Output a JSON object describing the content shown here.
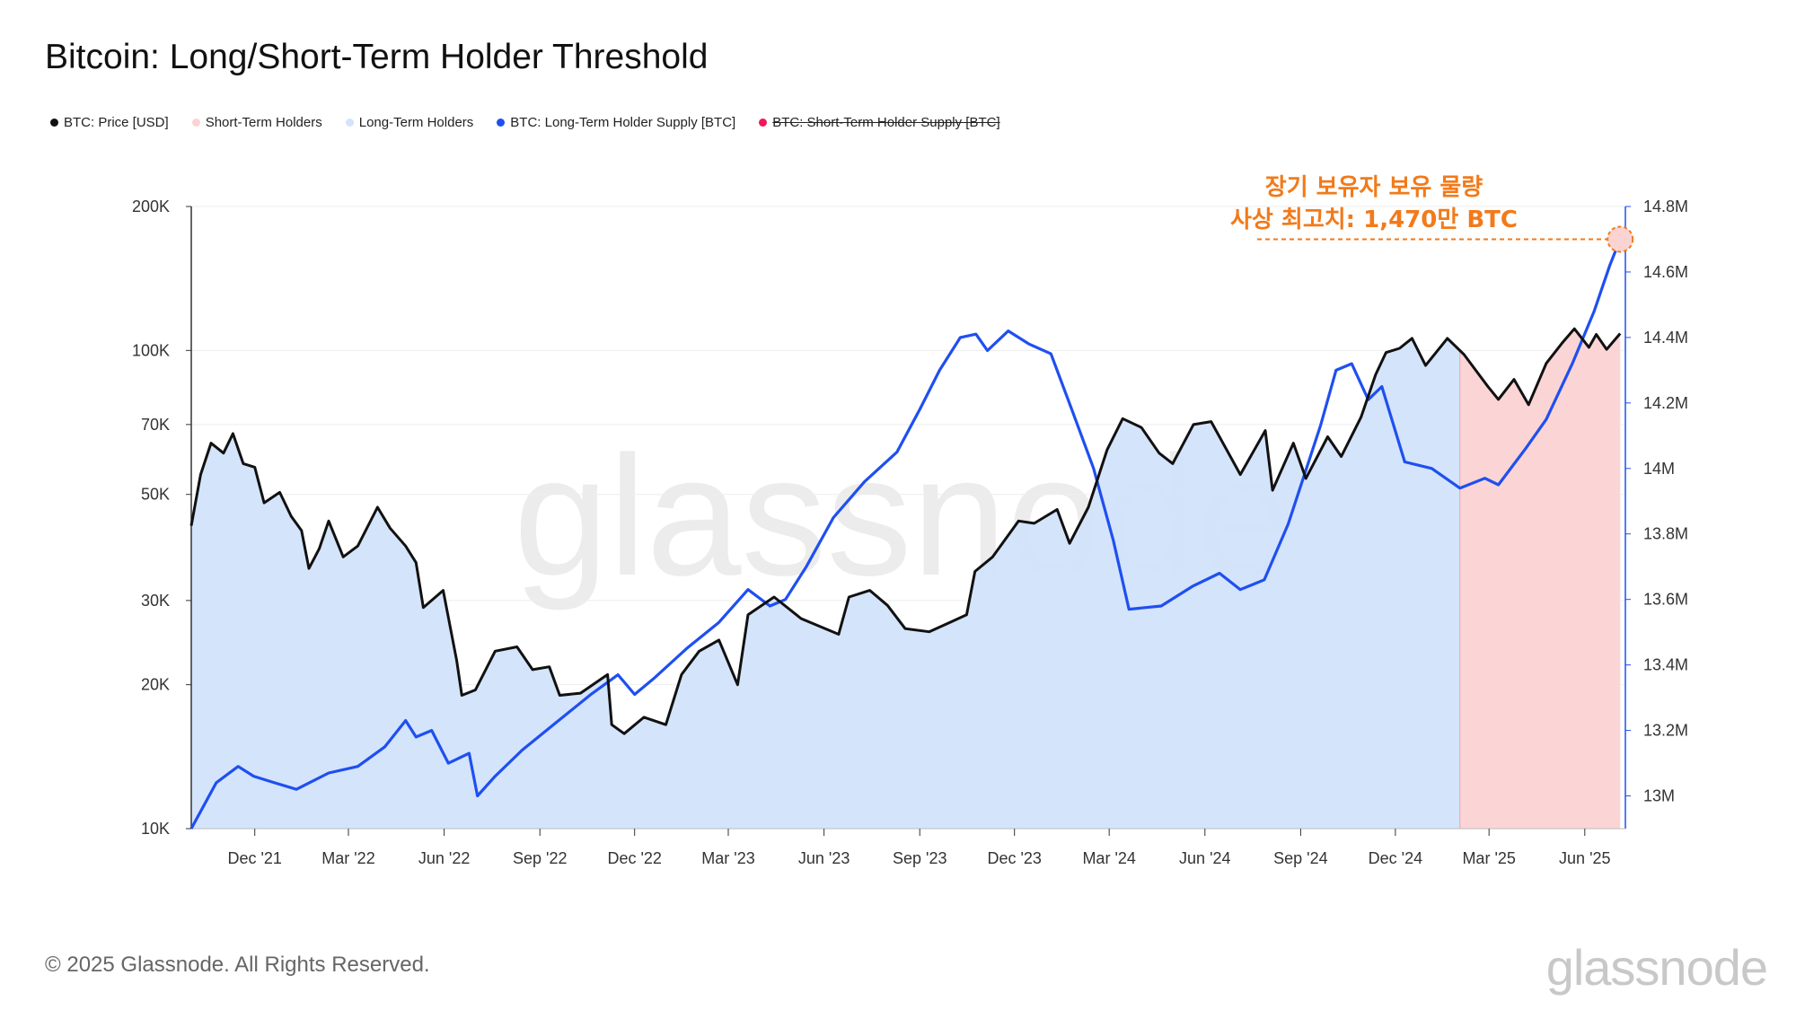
{
  "page": {
    "title": "Bitcoin: Long/Short-Term Holder Threshold",
    "footer": "© 2025 Glassnode. All Rights Reserved.",
    "logo": "glassnode",
    "watermark": "glassnode"
  },
  "legend": [
    {
      "label": "BTC: Price [USD]",
      "color": "#111111",
      "struck": false
    },
    {
      "label": "Short-Term Holders",
      "color": "#fbd3d3",
      "struck": false
    },
    {
      "label": "Long-Term Holders",
      "color": "#d2e3fb",
      "struck": false
    },
    {
      "label": "BTC: Long-Term Holder Supply [BTC]",
      "color": "#1f4ff0",
      "struck": false
    },
    {
      "label": "BTC: Short-Term Holder Supply [BTC]",
      "color": "#f0185a",
      "struck": true
    }
  ],
  "chart_data": {
    "type": "line",
    "title": "Bitcoin: Long/Short-Term Holder Threshold",
    "x_range": [
      "2021-10-01",
      "2025-07-10"
    ],
    "x_ticks": [
      {
        "date": "2021-12-01",
        "label": "Dec '21"
      },
      {
        "date": "2022-03-01",
        "label": "Mar '22"
      },
      {
        "date": "2022-06-01",
        "label": "Jun '22"
      },
      {
        "date": "2022-09-01",
        "label": "Sep '22"
      },
      {
        "date": "2022-12-01",
        "label": "Dec '22"
      },
      {
        "date": "2023-03-01",
        "label": "Mar '23"
      },
      {
        "date": "2023-06-01",
        "label": "Jun '23"
      },
      {
        "date": "2023-09-01",
        "label": "Sep '23"
      },
      {
        "date": "2023-12-01",
        "label": "Dec '23"
      },
      {
        "date": "2024-03-01",
        "label": "Mar '24"
      },
      {
        "date": "2024-06-01",
        "label": "Jun '24"
      },
      {
        "date": "2024-09-01",
        "label": "Sep '24"
      },
      {
        "date": "2024-12-01",
        "label": "Dec '24"
      },
      {
        "date": "2025-03-01",
        "label": "Mar '25"
      },
      {
        "date": "2025-06-01",
        "label": "Jun '25"
      }
    ],
    "y_left": {
      "scale": "log",
      "range": [
        10000,
        200000
      ],
      "ticks": [
        {
          "value": 10000,
          "label": "10K"
        },
        {
          "value": 20000,
          "label": "20K"
        },
        {
          "value": 30000,
          "label": "30K"
        },
        {
          "value": 50000,
          "label": "50K"
        },
        {
          "value": 70000,
          "label": "70K"
        },
        {
          "value": 100000,
          "label": "100K"
        },
        {
          "value": 200000,
          "label": "200K"
        }
      ]
    },
    "y_right": {
      "scale": "linear",
      "range": [
        12900000,
        14800000
      ],
      "ticks": [
        {
          "value": 13000000,
          "label": "13M"
        },
        {
          "value": 13200000,
          "label": "13.2M"
        },
        {
          "value": 13400000,
          "label": "13.4M"
        },
        {
          "value": 13600000,
          "label": "13.6M"
        },
        {
          "value": 13800000,
          "label": "13.8M"
        },
        {
          "value": 14000000,
          "label": "14M"
        },
        {
          "value": 14200000,
          "label": "14.2M"
        },
        {
          "value": 14400000,
          "label": "14.4M"
        },
        {
          "value": 14600000,
          "label": "14.6M"
        },
        {
          "value": 14800000,
          "label": "14.8M"
        }
      ]
    },
    "regime_split_date": "2025-02-01",
    "grid": true,
    "legend_position": "top-left",
    "series": [
      {
        "name": "BTC: Price [USD]",
        "axis": "left",
        "color": "#111111",
        "points": [
          [
            "2021-10-01",
            43000
          ],
          [
            "2021-10-10",
            55000
          ],
          [
            "2021-10-20",
            64000
          ],
          [
            "2021-11-01",
            61000
          ],
          [
            "2021-11-10",
            67000
          ],
          [
            "2021-11-20",
            58000
          ],
          [
            "2021-12-01",
            57000
          ],
          [
            "2021-12-10",
            48000
          ],
          [
            "2021-12-25",
            50500
          ],
          [
            "2022-01-05",
            45000
          ],
          [
            "2022-01-15",
            42000
          ],
          [
            "2022-01-22",
            35000
          ],
          [
            "2022-02-01",
            38500
          ],
          [
            "2022-02-10",
            44000
          ],
          [
            "2022-02-24",
            37000
          ],
          [
            "2022-03-10",
            39000
          ],
          [
            "2022-03-29",
            47000
          ],
          [
            "2022-04-10",
            42500
          ],
          [
            "2022-04-25",
            39000
          ],
          [
            "2022-05-05",
            36000
          ],
          [
            "2022-05-12",
            29000
          ],
          [
            "2022-05-31",
            31500
          ],
          [
            "2022-06-13",
            22500
          ],
          [
            "2022-06-18",
            19000
          ],
          [
            "2022-07-01",
            19500
          ],
          [
            "2022-07-20",
            23500
          ],
          [
            "2022-08-10",
            24000
          ],
          [
            "2022-08-25",
            21500
          ],
          [
            "2022-09-10",
            21800
          ],
          [
            "2022-09-20",
            19000
          ],
          [
            "2022-10-10",
            19200
          ],
          [
            "2022-11-05",
            21000
          ],
          [
            "2022-11-09",
            16500
          ],
          [
            "2022-11-21",
            15800
          ],
          [
            "2022-12-10",
            17100
          ],
          [
            "2022-12-31",
            16500
          ],
          [
            "2023-01-15",
            21000
          ],
          [
            "2023-02-01",
            23500
          ],
          [
            "2023-02-20",
            24800
          ],
          [
            "2023-03-10",
            20000
          ],
          [
            "2023-03-20",
            28000
          ],
          [
            "2023-04-14",
            30500
          ],
          [
            "2023-05-10",
            27500
          ],
          [
            "2023-06-15",
            25500
          ],
          [
            "2023-06-25",
            30500
          ],
          [
            "2023-07-15",
            31500
          ],
          [
            "2023-08-01",
            29300
          ],
          [
            "2023-08-18",
            26200
          ],
          [
            "2023-09-10",
            25800
          ],
          [
            "2023-09-30",
            27000
          ],
          [
            "2023-10-16",
            28000
          ],
          [
            "2023-10-24",
            34500
          ],
          [
            "2023-11-10",
            37000
          ],
          [
            "2023-12-05",
            44000
          ],
          [
            "2023-12-20",
            43500
          ],
          [
            "2024-01-11",
            46500
          ],
          [
            "2024-01-23",
            39500
          ],
          [
            "2024-02-10",
            47000
          ],
          [
            "2024-02-28",
            62000
          ],
          [
            "2024-03-14",
            72000
          ],
          [
            "2024-04-01",
            69000
          ],
          [
            "2024-04-18",
            61000
          ],
          [
            "2024-05-01",
            58000
          ],
          [
            "2024-05-21",
            70000
          ],
          [
            "2024-06-07",
            71000
          ],
          [
            "2024-07-05",
            55000
          ],
          [
            "2024-07-29",
            68000
          ],
          [
            "2024-08-05",
            51000
          ],
          [
            "2024-08-25",
            64000
          ],
          [
            "2024-09-06",
            54000
          ],
          [
            "2024-09-27",
            66000
          ],
          [
            "2024-10-10",
            60000
          ],
          [
            "2024-10-29",
            72500
          ],
          [
            "2024-11-12",
            89000
          ],
          [
            "2024-11-22",
            99000
          ],
          [
            "2024-12-05",
            101000
          ],
          [
            "2024-12-17",
            106000
          ],
          [
            "2024-12-30",
            93000
          ],
          [
            "2025-01-20",
            106000
          ],
          [
            "2025-02-05",
            98000
          ],
          [
            "2025-02-28",
            84000
          ],
          [
            "2025-03-10",
            79000
          ],
          [
            "2025-03-25",
            87000
          ],
          [
            "2025-04-08",
            77000
          ],
          [
            "2025-04-25",
            94000
          ],
          [
            "2025-05-10",
            103500
          ],
          [
            "2025-05-22",
            111000
          ],
          [
            "2025-06-05",
            101500
          ],
          [
            "2025-06-12",
            108000
          ],
          [
            "2025-06-22",
            100500
          ],
          [
            "2025-07-05",
            108500
          ]
        ]
      },
      {
        "name": "BTC: Long-Term Holder Supply [BTC]",
        "axis": "right",
        "color": "#1f4ff0",
        "points": [
          [
            "2021-10-01",
            12900000
          ],
          [
            "2021-10-25",
            13040000
          ],
          [
            "2021-11-15",
            13090000
          ],
          [
            "2021-11-30",
            13060000
          ],
          [
            "2021-12-20",
            13040000
          ],
          [
            "2022-01-10",
            13020000
          ],
          [
            "2022-02-10",
            13070000
          ],
          [
            "2022-03-10",
            13090000
          ],
          [
            "2022-04-05",
            13150000
          ],
          [
            "2022-04-25",
            13230000
          ],
          [
            "2022-05-05",
            13180000
          ],
          [
            "2022-05-20",
            13200000
          ],
          [
            "2022-06-05",
            13100000
          ],
          [
            "2022-06-25",
            13130000
          ],
          [
            "2022-07-03",
            13000000
          ],
          [
            "2022-07-20",
            13060000
          ],
          [
            "2022-08-15",
            13140000
          ],
          [
            "2022-09-15",
            13220000
          ],
          [
            "2022-10-20",
            13310000
          ],
          [
            "2022-11-15",
            13370000
          ],
          [
            "2022-12-01",
            13310000
          ],
          [
            "2022-12-20",
            13360000
          ],
          [
            "2023-01-20",
            13450000
          ],
          [
            "2023-02-20",
            13530000
          ],
          [
            "2023-03-20",
            13630000
          ],
          [
            "2023-04-10",
            13580000
          ],
          [
            "2023-04-25",
            13600000
          ],
          [
            "2023-05-15",
            13700000
          ],
          [
            "2023-06-10",
            13850000
          ],
          [
            "2023-07-10",
            13960000
          ],
          [
            "2023-08-10",
            14050000
          ],
          [
            "2023-09-01",
            14180000
          ],
          [
            "2023-09-20",
            14300000
          ],
          [
            "2023-10-10",
            14400000
          ],
          [
            "2023-10-25",
            14410000
          ],
          [
            "2023-11-05",
            14360000
          ],
          [
            "2023-11-25",
            14420000
          ],
          [
            "2023-12-15",
            14380000
          ],
          [
            "2024-01-05",
            14350000
          ],
          [
            "2024-01-25",
            14180000
          ],
          [
            "2024-02-15",
            14000000
          ],
          [
            "2024-03-05",
            13780000
          ],
          [
            "2024-03-20",
            13570000
          ],
          [
            "2024-04-20",
            13580000
          ],
          [
            "2024-05-20",
            13640000
          ],
          [
            "2024-06-15",
            13680000
          ],
          [
            "2024-07-05",
            13630000
          ],
          [
            "2024-07-28",
            13660000
          ],
          [
            "2024-08-20",
            13830000
          ],
          [
            "2024-09-20",
            14130000
          ],
          [
            "2024-10-05",
            14300000
          ],
          [
            "2024-10-20",
            14320000
          ],
          [
            "2024-11-05",
            14210000
          ],
          [
            "2024-11-18",
            14250000
          ],
          [
            "2024-12-10",
            14020000
          ],
          [
            "2025-01-05",
            14000000
          ],
          [
            "2025-02-01",
            13940000
          ],
          [
            "2025-02-25",
            13970000
          ],
          [
            "2025-03-10",
            13950000
          ],
          [
            "2025-04-05",
            14060000
          ],
          [
            "2025-04-25",
            14150000
          ],
          [
            "2025-05-20",
            14320000
          ],
          [
            "2025-06-10",
            14480000
          ],
          [
            "2025-06-25",
            14620000
          ],
          [
            "2025-07-05",
            14700000
          ]
        ]
      }
    ],
    "annotations": [
      {
        "lines": [
          "장기 보유자 보유 물량",
          "사상 최고치: 1,470만 BTC"
        ],
        "date": "2025-07-05",
        "value": 14700000,
        "color": "#f27a1a"
      }
    ]
  }
}
